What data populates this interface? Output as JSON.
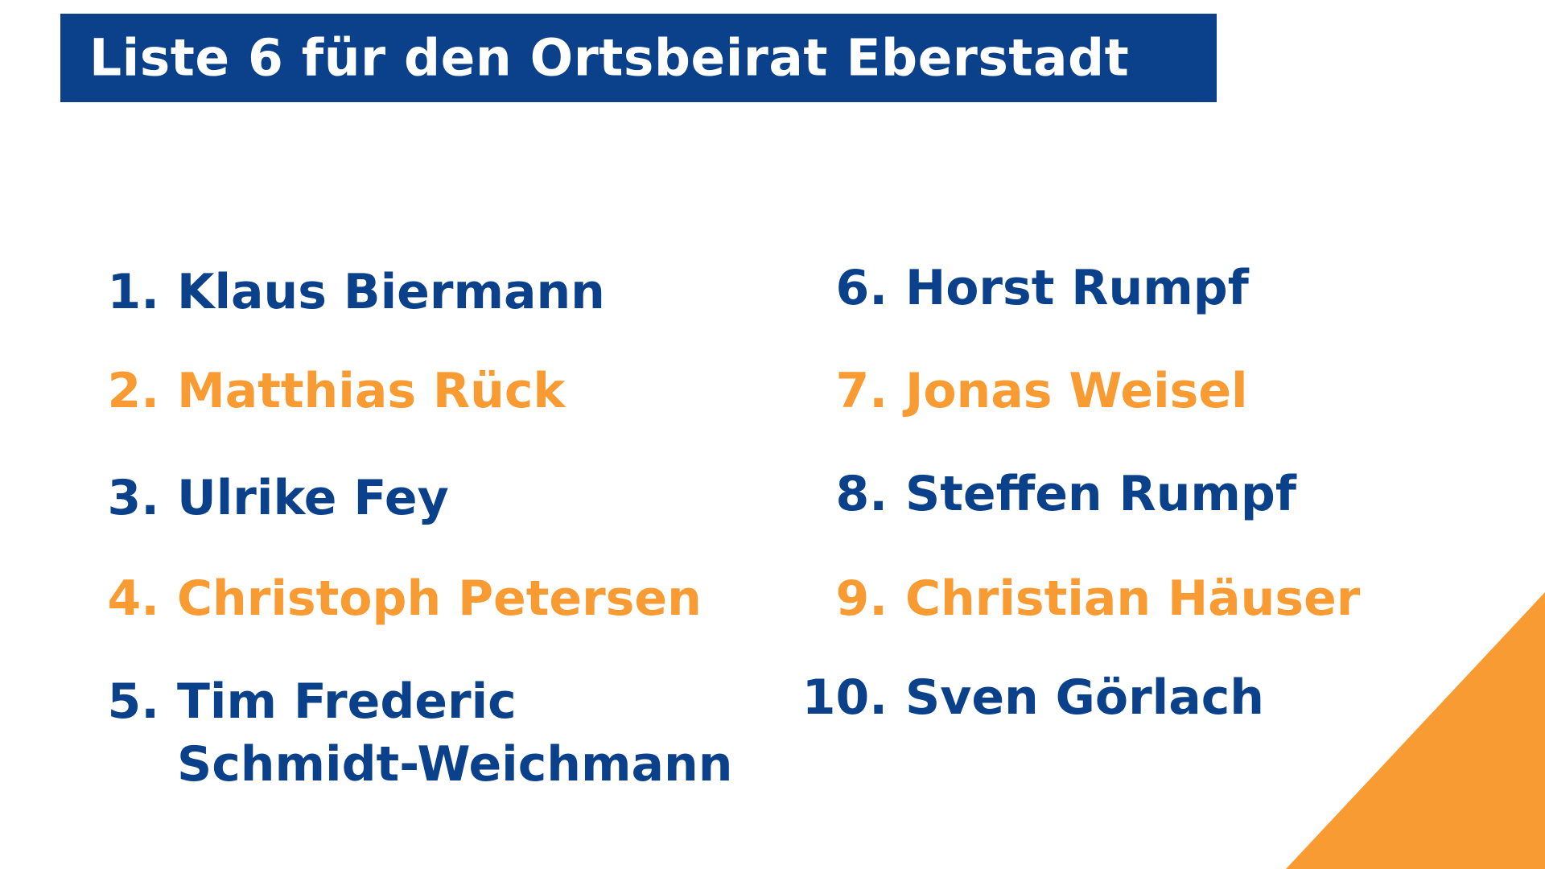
{
  "title": "Liste 6 für den Ortsbeirat Eberstadt",
  "colors": {
    "primary_blue": "#0a418a",
    "accent_orange": "#f89b32",
    "background": "#ffffff"
  },
  "candidates": [
    {
      "number": "1.",
      "name": "Klaus Biermann",
      "color": "blue"
    },
    {
      "number": "2.",
      "name": "Matthias Rück",
      "color": "orange"
    },
    {
      "number": "3.",
      "name": "Ulrike Fey",
      "color": "blue"
    },
    {
      "number": "4.",
      "name": "Christoph Petersen",
      "color": "orange"
    },
    {
      "number": "5.",
      "name": "Tim Frederic",
      "name_line2": "Schmidt-Weichmann",
      "color": "blue"
    },
    {
      "number": "6.",
      "name": "Horst Rumpf",
      "color": "blue"
    },
    {
      "number": "7.",
      "name": "Jonas Weisel",
      "color": "orange"
    },
    {
      "number": "8.",
      "name": "Steffen Rumpf",
      "color": "blue"
    },
    {
      "number": "9.",
      "name": "Christian Häuser",
      "color": "orange"
    },
    {
      "number": "10.",
      "name": "Sven Görlach",
      "color": "blue"
    }
  ]
}
